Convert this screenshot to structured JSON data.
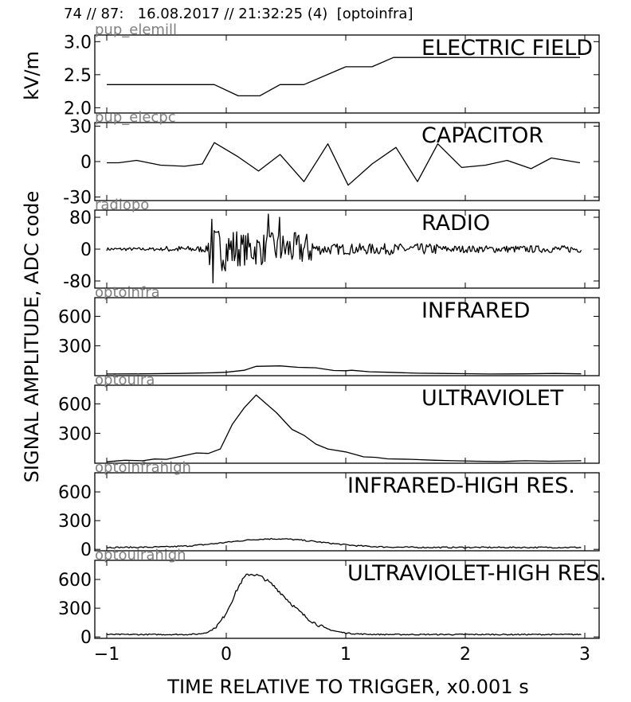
{
  "header": {
    "text": "74 // 87:   16.08.2017 // 21:32:25 (4)  [optoinfra]"
  },
  "chart_data": {
    "type": "line",
    "xlabel": "TIME RELATIVE TO TRIGGER,   x0.001 s",
    "ylabel_top": "kV/m",
    "ylabel_bottom": "SIGNAL AMPLITUDE,  ADC code",
    "xlim": [
      -1.1,
      3.12
    ],
    "xticks": [
      -1,
      0,
      1,
      2,
      3
    ],
    "xtick_labels": [
      "−1",
      "0",
      "1",
      "2",
      "3"
    ],
    "panels": [
      {
        "id_label": "pup_elemill",
        "title": "ELECTRIC FIELD",
        "ylim": [
          1.92,
          3.1
        ],
        "yticks": [
          2.0,
          2.5,
          3.0
        ],
        "ytick_labels": [
          "2.0",
          "2.5",
          "3.0"
        ],
        "x": [
          -1.0,
          -0.1,
          0.1,
          0.28,
          0.45,
          0.65,
          1.0,
          1.22,
          1.4,
          1.6,
          2.4,
          2.96
        ],
        "values": [
          2.35,
          2.35,
          2.18,
          2.18,
          2.35,
          2.35,
          2.62,
          2.62,
          2.76,
          2.76,
          2.76,
          2.76
        ]
      },
      {
        "id_label": "pup_elecpc",
        "title": "CAPACITOR",
        "ylim": [
          -33,
          33
        ],
        "yticks": [
          -30,
          0,
          30
        ],
        "ytick_labels": [
          "-30",
          "0",
          "30"
        ],
        "x": [
          -1.0,
          -0.9,
          -0.75,
          -0.55,
          -0.35,
          -0.2,
          -0.1,
          0.1,
          0.27,
          0.45,
          0.65,
          0.85,
          1.02,
          1.22,
          1.42,
          1.6,
          1.77,
          1.97,
          2.17,
          2.35,
          2.55,
          2.72,
          2.96
        ],
        "values": [
          -1,
          -1,
          1,
          -3,
          -4,
          -2,
          16,
          4,
          -8,
          6,
          -17,
          15,
          -20,
          -2,
          12,
          -17,
          15,
          -5,
          -3,
          1,
          -6,
          3,
          -1
        ]
      },
      {
        "id_label": "radiopo",
        "title": "RADIO",
        "ylim": [
          -98,
          98
        ],
        "yticks": [
          -80,
          0,
          80
        ],
        "ytick_labels": [
          "-80",
          "0",
          "80"
        ],
        "generated": "radio",
        "x_range": [
          -1.0,
          2.97
        ]
      },
      {
        "id_label": "optoinfra",
        "title": "INFRARED",
        "ylim": [
          -5,
          790
        ],
        "yticks": [
          300,
          600
        ],
        "ytick_labels": [
          "300",
          "600"
        ],
        "x": [
          -1.0,
          -0.7,
          -0.4,
          -0.1,
          0.0,
          0.15,
          0.25,
          0.45,
          0.6,
          0.75,
          0.9,
          1.0,
          1.05,
          1.2,
          1.35,
          1.6,
          1.8,
          2.0,
          2.2,
          2.5,
          2.75,
          2.97
        ],
        "values": [
          12,
          14,
          18,
          25,
          30,
          50,
          90,
          95,
          80,
          75,
          48,
          45,
          50,
          35,
          30,
          20,
          18,
          15,
          12,
          14,
          18,
          14
        ]
      },
      {
        "id_label": "optouira",
        "title": "ULTRAVIOLET",
        "ylim": [
          -5,
          790
        ],
        "yticks": [
          300,
          600
        ],
        "ytick_labels": [
          "300",
          "600"
        ],
        "x": [
          -1.0,
          -0.85,
          -0.7,
          -0.6,
          -0.5,
          -0.4,
          -0.25,
          -0.15,
          -0.05,
          0.05,
          0.15,
          0.25,
          0.42,
          0.55,
          0.65,
          0.75,
          0.85,
          1.0,
          1.15,
          1.25,
          1.35,
          1.55,
          1.75,
          1.9,
          2.1,
          2.3,
          2.5,
          2.7,
          2.97
        ],
        "values": [
          10,
          25,
          20,
          38,
          35,
          60,
          100,
          95,
          140,
          390,
          560,
          690,
          510,
          340,
          280,
          190,
          140,
          110,
          60,
          55,
          40,
          35,
          25,
          20,
          15,
          12,
          20,
          15,
          20
        ]
      },
      {
        "id_label": "optoinfrahigh",
        "title": "INFRARED-HIGH RES.",
        "ylim": [
          -15,
          800
        ],
        "yticks": [
          0,
          300,
          600
        ],
        "ytick_labels": [
          "0",
          "300",
          "600"
        ],
        "generated": "irhigh",
        "x_range": [
          -1.0,
          2.97
        ]
      },
      {
        "id_label": "optouirahigh",
        "title": "ULTRAVIOLET-HIGH RES.",
        "ylim": [
          -15,
          800
        ],
        "yticks": [
          0,
          300,
          600
        ],
        "ytick_labels": [
          "0",
          "300",
          "600"
        ],
        "generated": "uvhigh",
        "x_range": [
          -1.0,
          2.97
        ]
      }
    ]
  }
}
